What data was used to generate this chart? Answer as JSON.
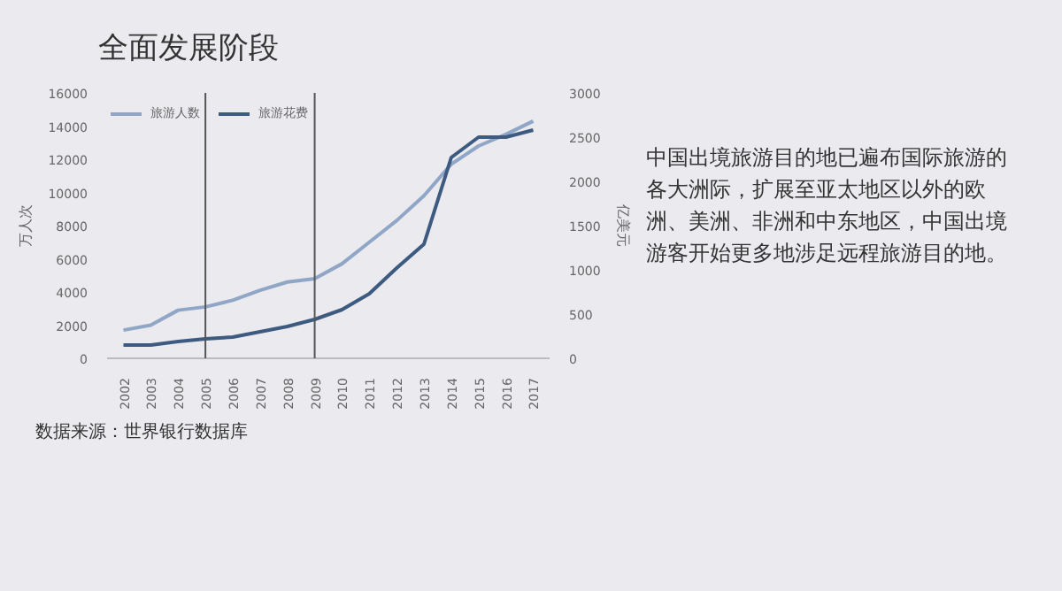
{
  "chart_data": {
    "type": "line",
    "title": "全面发展阶段",
    "categories": [
      "2002",
      "2003",
      "2004",
      "2005",
      "2006",
      "2007",
      "2008",
      "2009",
      "2010",
      "2011",
      "2012",
      "2013",
      "2014",
      "2015",
      "2016",
      "2017"
    ],
    "series": [
      {
        "name": "旅游人数",
        "color": "#8fa6c6",
        "values": [
          1700,
          2000,
          2900,
          3100,
          3500,
          4100,
          4600,
          4800,
          5700,
          7000,
          8300,
          9800,
          11700,
          12800,
          13500,
          14300
        ]
      },
      {
        "name": "旅游花费",
        "color": "#3d5a80",
        "axis": "y2",
        "values": [
          150,
          150,
          190,
          220,
          240,
          300,
          360,
          440,
          550,
          730,
          1020,
          1290,
          2270,
          2500,
          2500,
          2580
        ]
      }
    ],
    "ylabel": "万人次",
    "y2label": "亿美元",
    "ylim": [
      0,
      16000
    ],
    "yticks": [
      0,
      2000,
      4000,
      6000,
      8000,
      10000,
      12000,
      14000,
      16000
    ],
    "y2lim": [
      0,
      3000
    ],
    "y2ticks": [
      0,
      500,
      1000,
      1500,
      2000,
      2500,
      3000
    ],
    "ref_lines": [
      {
        "axis": "x",
        "value": "2005",
        "color": "#555555"
      },
      {
        "axis": "x",
        "value": "2009",
        "color": "#555555"
      }
    ],
    "grid": false,
    "legend": "top left",
    "annotations": [
      "中国出境旅游目的地已遍布国际旅游的各大洲际，扩展至亚太地区以外的欧洲、美洲、非洲和中东地区，中国出境游客开始更多地涉足远程旅游目的地。",
      "数据来源：世界银行数据库"
    ]
  }
}
